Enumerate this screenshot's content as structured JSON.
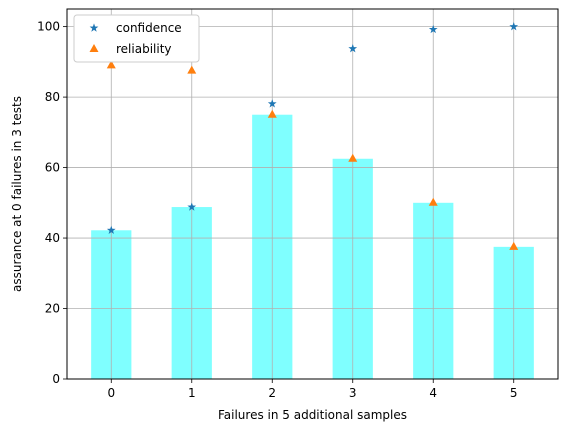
{
  "chart_data": {
    "type": "bar",
    "categories": [
      "0",
      "1",
      "2",
      "3",
      "4",
      "5"
    ],
    "values": [
      42.2,
      48.8,
      75.0,
      62.5,
      50.0,
      37.5
    ],
    "bar_color": "#7fffff",
    "overlays": [
      {
        "name": "confidence",
        "type": "scatter",
        "marker": "star",
        "color": "#1f77b4",
        "values": [
          42.2,
          48.8,
          78.1,
          93.75,
          99.2,
          100.0
        ]
      },
      {
        "name": "reliability",
        "type": "scatter",
        "marker": "triangle",
        "color": "#ff7f0e",
        "values": [
          89.0,
          87.5,
          75.0,
          62.5,
          50.0,
          37.5
        ]
      }
    ],
    "xlabel": "Failures in 5 additional samples",
    "ylabel": "assurance at 0 failures in 3 tests",
    "ylim": [
      0,
      105
    ],
    "yticks": [
      0,
      20,
      40,
      60,
      80,
      100
    ],
    "grid": true,
    "grid_color": "#b0b0b0",
    "legend": {
      "position": "top-left",
      "entries": [
        "confidence",
        "reliability"
      ]
    }
  }
}
